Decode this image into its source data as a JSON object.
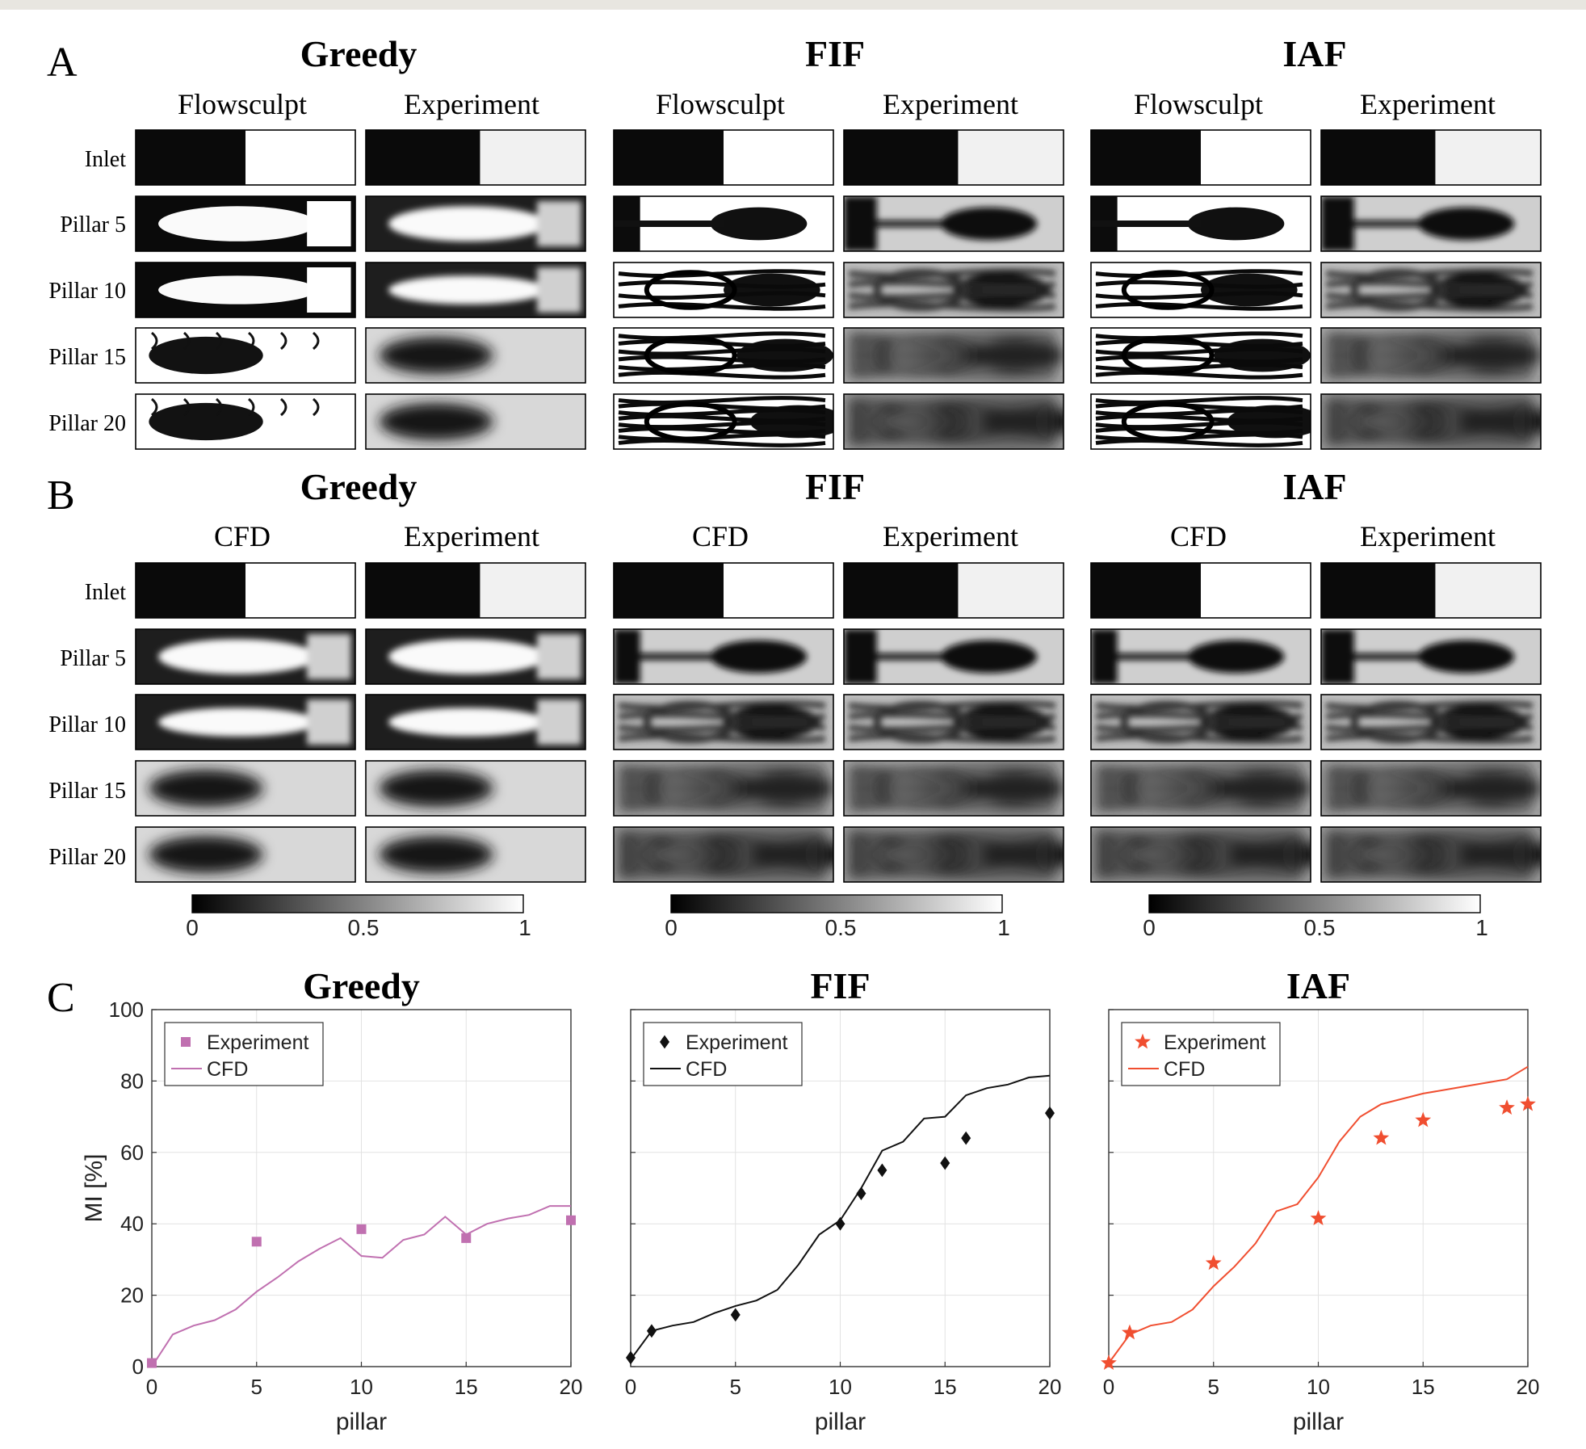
{
  "panels": [
    "A",
    "B",
    "C"
  ],
  "groups": [
    "Greedy",
    "FIF",
    "IAF"
  ],
  "panel_a": {
    "col_heads": [
      "Flowsculpt",
      "Experiment"
    ],
    "rows": [
      "Inlet",
      "Pillar 5",
      "Pillar 10",
      "Pillar 15",
      "Pillar 20"
    ]
  },
  "panel_b": {
    "col_heads": [
      "CFD",
      "Experiment"
    ],
    "rows": [
      "Inlet",
      "Pillar 5",
      "Pillar 10",
      "Pillar 15",
      "Pillar 20"
    ],
    "colorbar_ticks": [
      "0",
      "0.5",
      "1"
    ]
  },
  "colors": {
    "greedy": "#c070b0",
    "fif": "#111111",
    "iaf": "#f04e30"
  },
  "chart_data": [
    {
      "type": "line",
      "title": "Greedy",
      "xlabel": "pillar",
      "ylabel": "MI [%]",
      "xlim": [
        0,
        20
      ],
      "ylim": [
        0,
        100
      ],
      "xticks": [
        0,
        5,
        10,
        15,
        20
      ],
      "yticks": [
        0,
        20,
        40,
        60,
        80,
        100
      ],
      "grid": true,
      "legend_position": "top-left",
      "marker": "square",
      "color": "#c070b0",
      "series": [
        {
          "name": "Experiment",
          "kind": "scatter",
          "x": [
            0,
            5,
            10,
            15,
            20
          ],
          "y": [
            1,
            35,
            38.5,
            36,
            41
          ]
        },
        {
          "name": "CFD",
          "kind": "line",
          "x": [
            0,
            1,
            2,
            3,
            4,
            5,
            6,
            7,
            8,
            9,
            10,
            11,
            12,
            13,
            14,
            15,
            16,
            17,
            18,
            19,
            20
          ],
          "y": [
            0,
            9,
            11.5,
            13,
            16,
            21,
            25,
            29.5,
            33,
            36,
            31,
            30.5,
            35.5,
            37,
            42,
            37,
            40,
            41.5,
            42.5,
            45,
            45
          ]
        }
      ]
    },
    {
      "type": "line",
      "title": "FIF",
      "xlabel": "pillar",
      "ylabel": "",
      "xlim": [
        0,
        20
      ],
      "ylim": [
        0,
        100
      ],
      "xticks": [
        0,
        5,
        10,
        15,
        20
      ],
      "yticks": [
        0,
        20,
        40,
        60,
        80,
        100
      ],
      "grid": true,
      "legend_position": "top-left",
      "marker": "diamond",
      "color": "#111111",
      "series": [
        {
          "name": "Experiment",
          "kind": "scatter",
          "x": [
            0,
            1,
            5,
            10,
            11,
            12,
            15,
            16,
            20
          ],
          "y": [
            2.5,
            10,
            14.5,
            40,
            48.5,
            55,
            57,
            64,
            71
          ]
        },
        {
          "name": "CFD",
          "kind": "line",
          "x": [
            0,
            1,
            2,
            3,
            4,
            5,
            6,
            7,
            8,
            9,
            10,
            11,
            12,
            13,
            14,
            15,
            16,
            17,
            18,
            19,
            20
          ],
          "y": [
            2,
            10,
            11.5,
            12.5,
            15,
            17,
            18.5,
            21.5,
            28.5,
            37,
            41,
            50,
            60.5,
            63,
            69.5,
            70,
            76,
            78,
            79,
            81,
            81.5
          ]
        }
      ]
    },
    {
      "type": "line",
      "title": "IAF",
      "xlabel": "pillar",
      "ylabel": "",
      "xlim": [
        0,
        20
      ],
      "ylim": [
        0,
        100
      ],
      "xticks": [
        0,
        5,
        10,
        15,
        20
      ],
      "yticks": [
        0,
        20,
        40,
        60,
        80,
        100
      ],
      "grid": true,
      "legend_position": "top-left",
      "marker": "star",
      "color": "#f04e30",
      "series": [
        {
          "name": "Experiment",
          "kind": "scatter",
          "x": [
            0,
            1,
            5,
            10,
            13,
            15,
            19,
            20
          ],
          "y": [
            1,
            9.5,
            29,
            41.5,
            64,
            69,
            72.5,
            73.5
          ]
        },
        {
          "name": "CFD",
          "kind": "line",
          "x": [
            0,
            1,
            2,
            3,
            4,
            5,
            6,
            7,
            8,
            9,
            10,
            11,
            12,
            13,
            14,
            15,
            16,
            17,
            18,
            19,
            20
          ],
          "y": [
            1,
            9,
            11.5,
            12.5,
            16,
            22.5,
            28,
            34.5,
            43.5,
            45.5,
            53,
            63,
            70,
            73.5,
            75,
            76.5,
            77.5,
            78.5,
            79.5,
            80.5,
            84
          ]
        }
      ]
    }
  ]
}
